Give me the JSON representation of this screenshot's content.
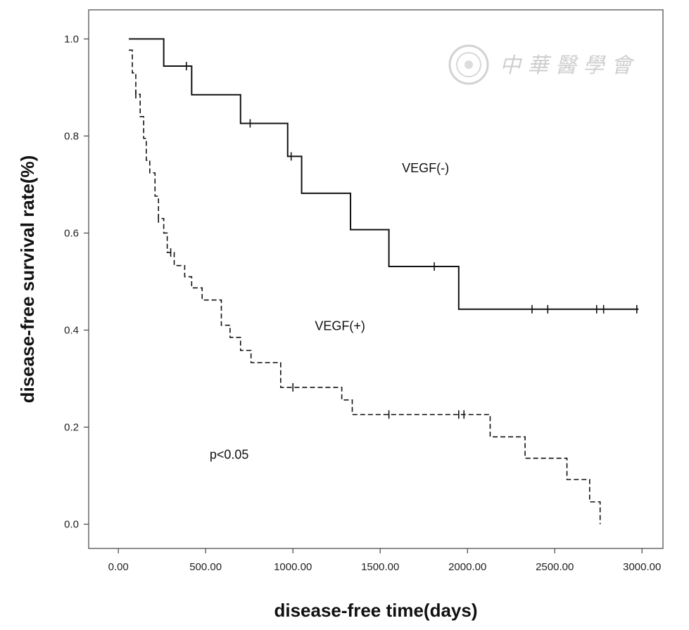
{
  "chart_data": {
    "type": "line",
    "subtype": "kaplan-meier-step",
    "xlabel": "disease-free time(days)",
    "ylabel": "disease-free survival rate(%)",
    "xlim": [
      -170,
      3120
    ],
    "ylim": [
      -0.05,
      1.06
    ],
    "xticks": [
      0,
      500,
      1000,
      1500,
      2000,
      2500,
      3000
    ],
    "xtick_labels": [
      "0.00",
      "500.00",
      "1000.00",
      "1500.00",
      "2000.00",
      "2500.00",
      "3000.00"
    ],
    "yticks": [
      0.0,
      0.2,
      0.4,
      0.6,
      0.8,
      1.0
    ],
    "ytick_labels": [
      "0.0",
      "0.2",
      "0.4",
      "0.6",
      "0.8",
      "1.0"
    ],
    "grid": false,
    "series": [
      {
        "name": "VEGF(-)",
        "style": "solid",
        "color": "#111111",
        "steps": [
          [
            60,
            1.0
          ],
          [
            260,
            0.944
          ],
          [
            420,
            0.885
          ],
          [
            700,
            0.826
          ],
          [
            970,
            0.758
          ],
          [
            1050,
            0.682
          ],
          [
            1330,
            0.607
          ],
          [
            1550,
            0.531
          ],
          [
            1950,
            0.443
          ],
          [
            2980,
            0.443
          ]
        ],
        "censored": [
          [
            390,
            0.944
          ],
          [
            755,
            0.826
          ],
          [
            990,
            0.758
          ],
          [
            1810,
            0.531
          ],
          [
            2370,
            0.443
          ],
          [
            2460,
            0.443
          ],
          [
            2740,
            0.443
          ],
          [
            2780,
            0.443
          ],
          [
            2970,
            0.443
          ]
        ]
      },
      {
        "name": "VEGF(+)",
        "style": "dashed",
        "color": "#111111",
        "steps": [
          [
            60,
            0.977
          ],
          [
            80,
            0.93
          ],
          [
            100,
            0.886
          ],
          [
            125,
            0.84
          ],
          [
            145,
            0.795
          ],
          [
            160,
            0.75
          ],
          [
            180,
            0.724
          ],
          [
            210,
            0.676
          ],
          [
            230,
            0.63
          ],
          [
            260,
            0.6
          ],
          [
            280,
            0.56
          ],
          [
            320,
            0.533
          ],
          [
            380,
            0.51
          ],
          [
            420,
            0.487
          ],
          [
            480,
            0.462
          ],
          [
            590,
            0.41
          ],
          [
            640,
            0.385
          ],
          [
            700,
            0.358
          ],
          [
            760,
            0.333
          ],
          [
            930,
            0.282
          ],
          [
            1280,
            0.256
          ],
          [
            1340,
            0.226
          ],
          [
            2130,
            0.18
          ],
          [
            2330,
            0.136
          ],
          [
            2570,
            0.092
          ],
          [
            2700,
            0.046
          ],
          [
            2760,
            0.0
          ]
        ],
        "censored": [
          [
            100,
            0.886
          ],
          [
            230,
            0.63
          ],
          [
            300,
            0.56
          ],
          [
            1000,
            0.282
          ],
          [
            1550,
            0.226
          ],
          [
            1950,
            0.226
          ],
          [
            1980,
            0.226
          ]
        ]
      }
    ],
    "annotations": [
      {
        "text": "VEGF(-)",
        "x": 1760,
        "y": 0.725
      },
      {
        "text": "VEGF(+)",
        "x": 1270,
        "y": 0.4
      },
      {
        "text": "p<0.05",
        "x": 635,
        "y": 0.135
      }
    ]
  }
}
